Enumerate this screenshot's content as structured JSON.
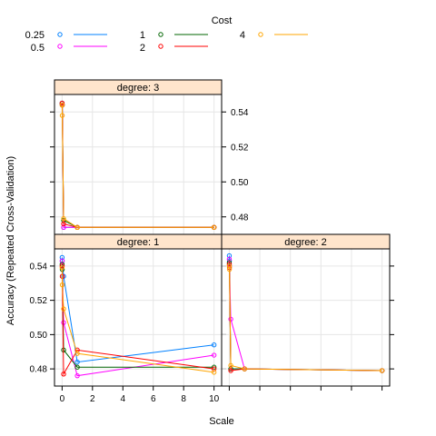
{
  "chart_data": {
    "type": "line",
    "ylabel": "Accuracy (Repeated Cross-Validation)",
    "xlabel": "Scale",
    "legend": {
      "title": "Cost",
      "position": "top"
    },
    "series_styles": [
      {
        "name": "0.25",
        "color": "#0080ff"
      },
      {
        "name": "0.5",
        "color": "#ff00ff"
      },
      {
        "name": "1",
        "color": "#006400"
      },
      {
        "name": "2",
        "color": "#ff0000"
      },
      {
        "name": "4",
        "color": "#ffa500"
      }
    ],
    "ylim": [
      0.47,
      0.55
    ],
    "y_ticks": [
      0.48,
      0.5,
      0.52,
      0.54
    ],
    "y_tick_labels": [
      "0.48",
      "0.50",
      "0.52",
      "0.54"
    ],
    "x_ticks": [
      0,
      2,
      4,
      6,
      8,
      10
    ],
    "x_tick_labels": [
      "0",
      "2",
      "4",
      "6",
      "8",
      "10"
    ],
    "grid": true,
    "panels": [
      {
        "strip": "degree: 1",
        "xlim": [
          -0.5,
          10.5
        ],
        "series": [
          {
            "name": "0.25",
            "points": [
              [
                0.001,
                0.545
              ],
              [
                0.01,
                0.543
              ],
              [
                0.1,
                0.534
              ],
              [
                1,
                0.484
              ],
              [
                10,
                0.494
              ]
            ]
          },
          {
            "name": "0.5",
            "points": [
              [
                0.001,
                0.543
              ],
              [
                0.01,
                0.54
              ],
              [
                0.1,
                0.507
              ],
              [
                1,
                0.476
              ],
              [
                10,
                0.488
              ]
            ]
          },
          {
            "name": "1",
            "points": [
              [
                0.001,
                0.541
              ],
              [
                0.01,
                0.538
              ],
              [
                0.1,
                0.491
              ],
              [
                1,
                0.481
              ],
              [
                10,
                0.481
              ]
            ]
          },
          {
            "name": "2",
            "points": [
              [
                0.001,
                0.54
              ],
              [
                0.01,
                0.534
              ],
              [
                0.1,
                0.477
              ],
              [
                1,
                0.491
              ],
              [
                10,
                0.48
              ]
            ]
          },
          {
            "name": "4",
            "points": [
              [
                0.001,
                0.539
              ],
              [
                0.01,
                0.529
              ],
              [
                0.1,
                0.515
              ],
              [
                1,
                0.489
              ],
              [
                10,
                0.478
              ]
            ]
          }
        ]
      },
      {
        "strip": "degree: 2",
        "xlim": [
          -0.5,
          10.5
        ],
        "series": [
          {
            "name": "0.25",
            "points": [
              [
                0.001,
                0.546
              ],
              [
                0.01,
                0.543
              ],
              [
                0.1,
                0.48
              ],
              [
                1,
                0.48
              ],
              [
                10,
                0.479
              ]
            ]
          },
          {
            "name": "0.5",
            "points": [
              [
                0.001,
                0.544
              ],
              [
                0.01,
                0.541
              ],
              [
                0.1,
                0.509
              ],
              [
                1,
                0.48
              ],
              [
                10,
                0.479
              ]
            ]
          },
          {
            "name": "1",
            "points": [
              [
                0.001,
                0.542
              ],
              [
                0.01,
                0.54
              ],
              [
                0.1,
                0.48
              ],
              [
                1,
                0.48
              ],
              [
                10,
                0.479
              ]
            ]
          },
          {
            "name": "2",
            "points": [
              [
                0.001,
                0.541
              ],
              [
                0.01,
                0.539
              ],
              [
                0.1,
                0.479
              ],
              [
                1,
                0.48
              ],
              [
                10,
                0.479
              ]
            ]
          },
          {
            "name": "4",
            "points": [
              [
                0.001,
                0.54
              ],
              [
                0.01,
                0.538
              ],
              [
                0.1,
                0.482
              ],
              [
                1,
                0.48
              ],
              [
                10,
                0.479
              ]
            ]
          }
        ]
      },
      {
        "strip": "degree: 3",
        "xlim": [
          -0.5,
          10.5
        ],
        "series": [
          {
            "name": "0.25",
            "points": [
              [
                0.001,
                0.545
              ],
              [
                0.01,
                0.544
              ],
              [
                0.1,
                0.474
              ],
              [
                1,
                0.474
              ],
              [
                10,
                0.474
              ]
            ]
          },
          {
            "name": "0.5",
            "points": [
              [
                0.001,
                0.545
              ],
              [
                0.01,
                0.544
              ],
              [
                0.1,
                0.474
              ],
              [
                1,
                0.474
              ],
              [
                10,
                0.474
              ]
            ]
          },
          {
            "name": "1",
            "points": [
              [
                0.001,
                0.545
              ],
              [
                0.01,
                0.544
              ],
              [
                0.1,
                0.478
              ],
              [
                1,
                0.474
              ],
              [
                10,
                0.474
              ]
            ]
          },
          {
            "name": "2",
            "points": [
              [
                0.001,
                0.545
              ],
              [
                0.01,
                0.544
              ],
              [
                0.1,
                0.476
              ],
              [
                1,
                0.474
              ],
              [
                10,
                0.474
              ]
            ]
          },
          {
            "name": "4",
            "points": [
              [
                0.001,
                0.544
              ],
              [
                0.01,
                0.538
              ],
              [
                0.1,
                0.479
              ],
              [
                1,
                0.474
              ],
              [
                10,
                0.474
              ]
            ]
          }
        ]
      }
    ]
  }
}
